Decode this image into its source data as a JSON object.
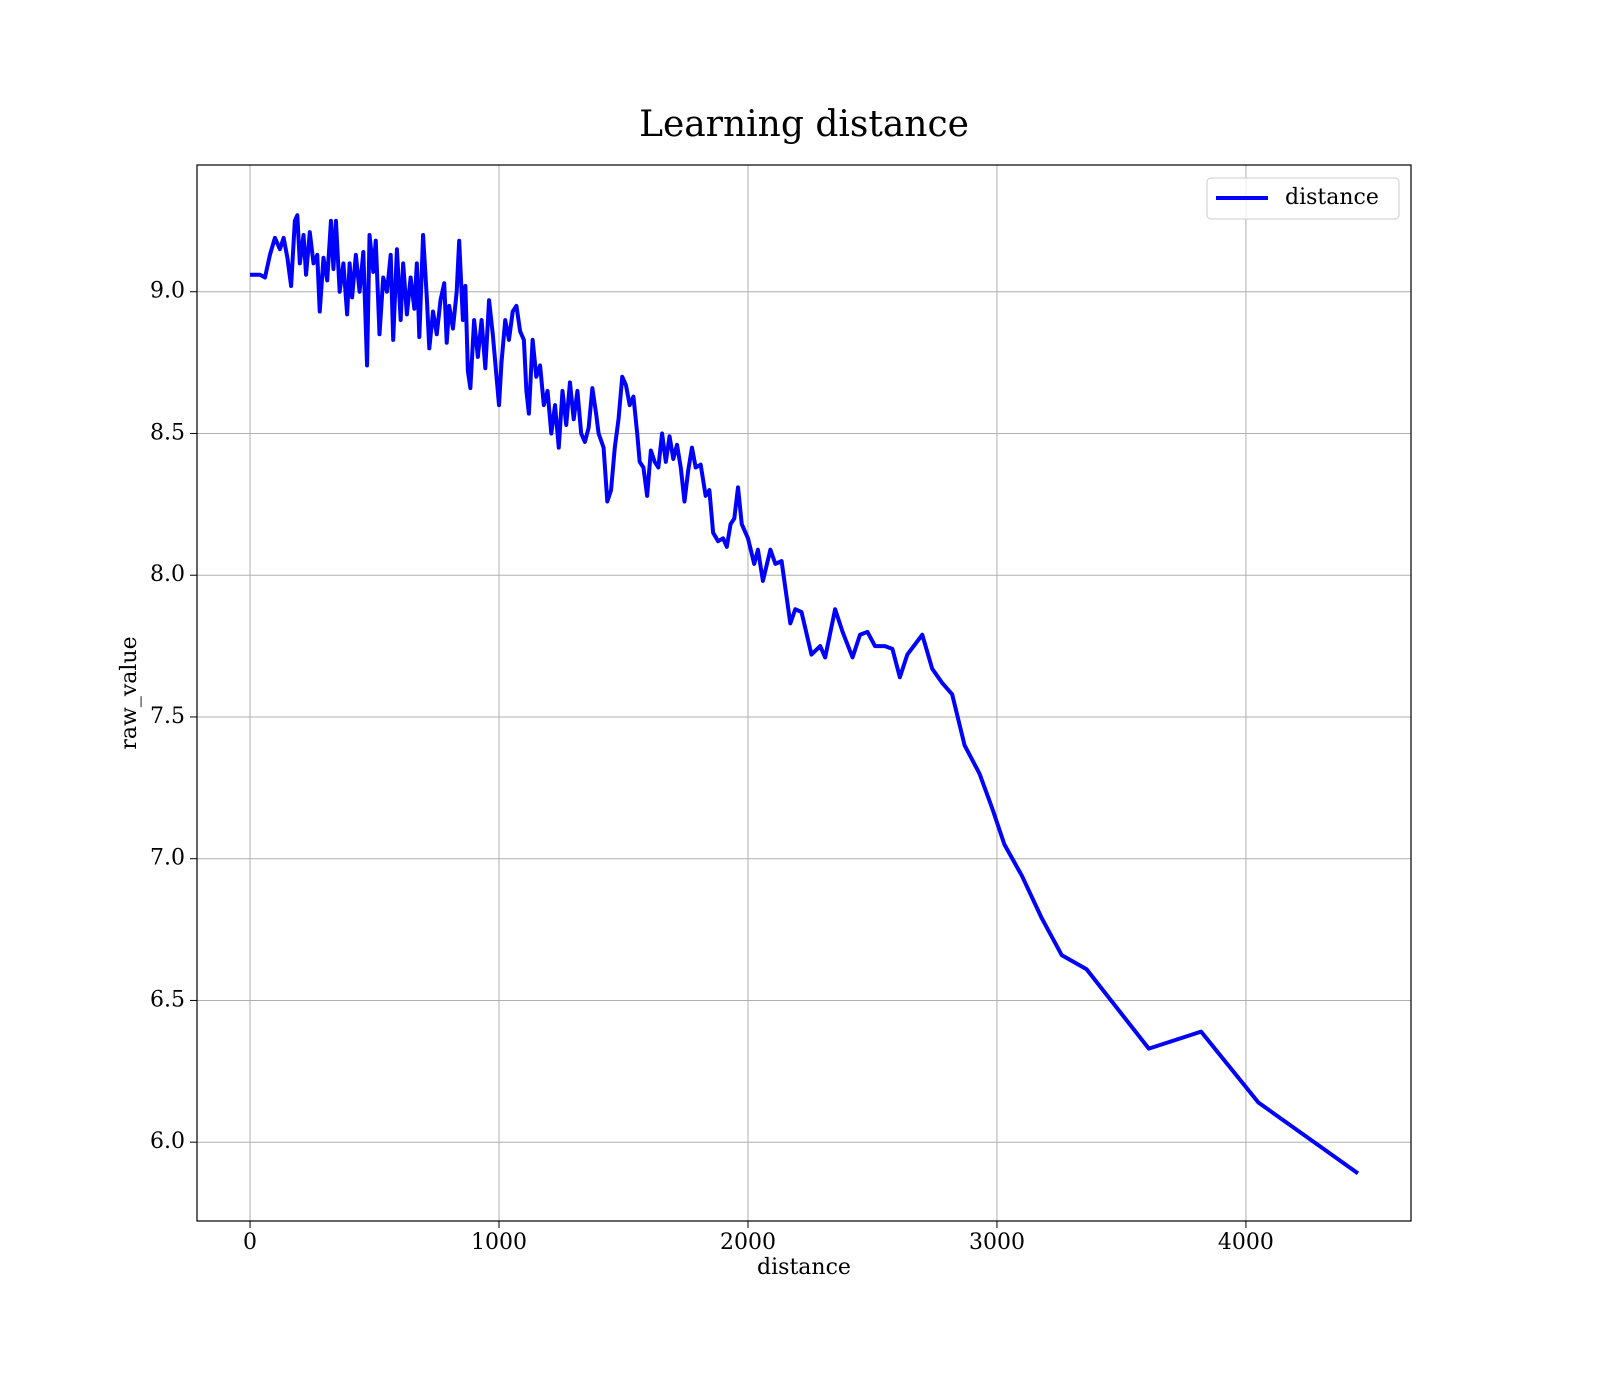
{
  "chart_data": {
    "type": "line",
    "title": "Learning distance",
    "x_label": "distance",
    "y_label": "raw_value",
    "x": [
      0,
      40,
      60,
      70,
      80,
      100,
      120,
      135,
      150,
      165,
      180,
      190,
      200,
      215,
      225,
      240,
      255,
      270,
      280,
      295,
      310,
      325,
      335,
      345,
      360,
      375,
      390,
      400,
      410,
      425,
      440,
      455,
      470,
      480,
      495,
      505,
      520,
      535,
      550,
      565,
      575,
      590,
      605,
      615,
      630,
      645,
      660,
      670,
      680,
      695,
      710,
      720,
      735,
      750,
      765,
      780,
      790,
      800,
      815,
      830,
      840,
      855,
      865,
      875,
      885,
      900,
      915,
      930,
      945,
      960,
      975,
      990,
      1000,
      1010,
      1025,
      1040,
      1055,
      1070,
      1085,
      1100,
      1110,
      1120,
      1135,
      1150,
      1165,
      1180,
      1195,
      1210,
      1225,
      1240,
      1255,
      1270,
      1285,
      1300,
      1315,
      1330,
      1345,
      1360,
      1375,
      1390,
      1400,
      1420,
      1435,
      1450,
      1465,
      1480,
      1495,
      1510,
      1525,
      1540,
      1555,
      1565,
      1580,
      1595,
      1610,
      1625,
      1640,
      1655,
      1670,
      1685,
      1700,
      1715,
      1730,
      1745,
      1760,
      1775,
      1790,
      1810,
      1830,
      1845,
      1860,
      1880,
      1900,
      1915,
      1930,
      1945,
      1960,
      1975,
      2000,
      2025,
      2040,
      2060,
      2090,
      2110,
      2135,
      2170,
      2190,
      2215,
      2255,
      2290,
      2310,
      2350,
      2380,
      2420,
      2450,
      2480,
      2510,
      2550,
      2580,
      2610,
      2640,
      2700,
      2740,
      2780,
      2820,
      2870,
      2930,
      2980,
      3030,
      3100,
      3180,
      3260,
      3360,
      3610,
      3820,
      4050,
      4450
    ],
    "series": [
      {
        "name": "distance",
        "color": "#0000ff",
        "values": [
          9.06,
          9.06,
          9.05,
          9.09,
          9.13,
          9.19,
          9.15,
          9.19,
          9.12,
          9.02,
          9.25,
          9.27,
          9.1,
          9.2,
          9.06,
          9.21,
          9.1,
          9.13,
          8.93,
          9.12,
          9.04,
          9.25,
          9.08,
          9.25,
          9.0,
          9.1,
          8.92,
          9.1,
          8.98,
          9.13,
          9.0,
          9.14,
          8.74,
          9.2,
          9.07,
          9.18,
          8.85,
          9.05,
          9.0,
          9.13,
          8.83,
          9.15,
          8.9,
          9.1,
          8.92,
          9.05,
          8.94,
          9.1,
          8.84,
          9.2,
          8.98,
          8.8,
          8.93,
          8.85,
          8.97,
          9.03,
          8.82,
          8.95,
          8.87,
          9.0,
          9.18,
          8.9,
          9.02,
          8.72,
          8.66,
          8.9,
          8.77,
          8.9,
          8.73,
          8.97,
          8.85,
          8.7,
          8.6,
          8.75,
          8.9,
          8.83,
          8.93,
          8.95,
          8.86,
          8.83,
          8.65,
          8.57,
          8.83,
          8.7,
          8.74,
          8.6,
          8.65,
          8.5,
          8.6,
          8.45,
          8.65,
          8.53,
          8.68,
          8.55,
          8.65,
          8.5,
          8.47,
          8.52,
          8.66,
          8.57,
          8.5,
          8.45,
          8.26,
          8.3,
          8.45,
          8.55,
          8.7,
          8.67,
          8.6,
          8.63,
          8.5,
          8.4,
          8.38,
          8.28,
          8.44,
          8.4,
          8.38,
          8.5,
          8.4,
          8.49,
          8.41,
          8.46,
          8.38,
          8.26,
          8.37,
          8.45,
          8.38,
          8.39,
          8.28,
          8.3,
          8.15,
          8.12,
          8.13,
          8.1,
          8.18,
          8.2,
          8.31,
          8.18,
          8.13,
          8.04,
          8.09,
          7.98,
          8.09,
          8.04,
          8.05,
          7.83,
          7.88,
          7.87,
          7.72,
          7.75,
          7.71,
          7.88,
          7.8,
          7.71,
          7.79,
          7.8,
          7.75,
          7.75,
          7.74,
          7.64,
          7.72,
          7.79,
          7.67,
          7.62,
          7.58,
          7.4,
          7.3,
          7.18,
          7.05,
          6.94,
          6.79,
          6.66,
          6.61,
          6.33,
          6.39,
          6.14,
          5.89
        ]
      }
    ],
    "xlim": [
      -213,
      4663
    ],
    "ylim": [
      5.722,
      9.447
    ],
    "xticks": [
      0,
      1000,
      2000,
      3000,
      4000
    ],
    "yticks": [
      {
        "value": 6,
        "label": "6.0"
      },
      6.5,
      {
        "value": 7,
        "label": "7.0"
      },
      7.5,
      {
        "value": 8,
        "label": "8.0"
      },
      8.5,
      {
        "value": 9,
        "label": "9.0"
      }
    ],
    "grid": true,
    "legend": "upper right"
  }
}
